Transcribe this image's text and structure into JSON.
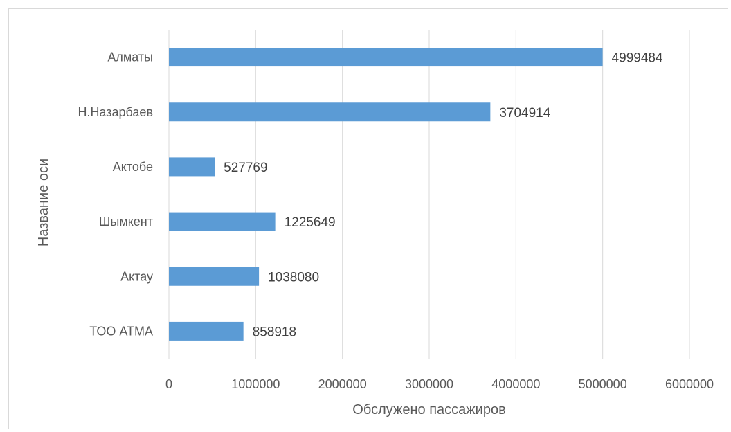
{
  "chart_data": {
    "type": "bar",
    "orientation": "horizontal",
    "categories": [
      "Алматы",
      "Н.Назарбаев",
      "Актобе",
      "Шымкент",
      "Актау",
      "ТОО АТМА"
    ],
    "values": [
      4999484,
      3704914,
      527769,
      1225649,
      1038080,
      858918
    ],
    "data_labels": [
      "4999484",
      "3704914",
      "527769",
      "1225649",
      "1038080",
      "858918"
    ],
    "xlabel": "Обслужено пассажиров",
    "ylabel": "Название оси",
    "xlim": [
      0,
      6000000
    ],
    "x_ticks": [
      0,
      1000000,
      2000000,
      3000000,
      4000000,
      5000000,
      6000000
    ],
    "x_tick_labels": [
      "0",
      "1000000",
      "2000000",
      "3000000",
      "4000000",
      "5000000",
      "6000000"
    ],
    "grid": "vertical",
    "legend": "none",
    "bar_color": "#5b9bd5",
    "gridline_color": "#d9d9d9"
  }
}
